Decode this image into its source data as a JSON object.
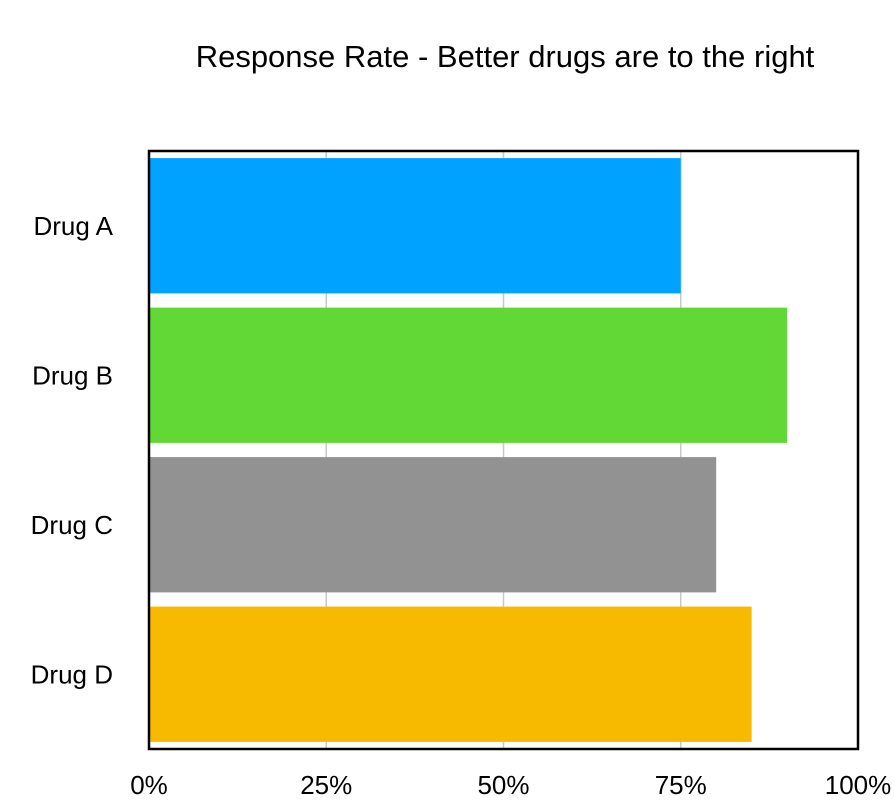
{
  "chart_data": {
    "type": "bar",
    "orientation": "horizontal",
    "title": "Response Rate - Better drugs are to the right",
    "categories": [
      "Drug A",
      "Drug B",
      "Drug C",
      "Drug D"
    ],
    "values": [
      0.75,
      0.9,
      0.8,
      0.85
    ],
    "colors": [
      "#00A2FF",
      "#61D836",
      "#929292",
      "#F8BA00"
    ],
    "xlim": [
      0,
      1
    ],
    "xticks": [
      0,
      0.25,
      0.5,
      0.75,
      1
    ],
    "xtick_labels": [
      "0%",
      "25%",
      "50%",
      "75%",
      "100%"
    ],
    "xlabel": "",
    "ylabel": "",
    "grid": "vertical",
    "legend": "none"
  }
}
